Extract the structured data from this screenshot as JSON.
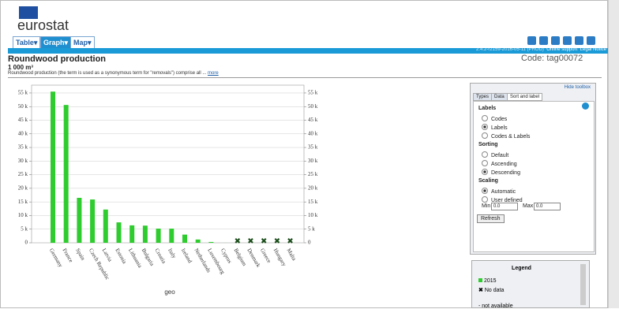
{
  "header": {
    "brand": "eurostat",
    "tabs": [
      "Table",
      "Graph",
      "Map"
    ],
    "version": "2.4.2-r2159-2016-05-11 (PROD)",
    "links": [
      "Online support",
      "Legal Notice"
    ],
    "code": "Code: tag00072"
  },
  "dataset": {
    "title": "Roundwood production",
    "unit": "1 000 m³",
    "description": "Roundwood production (the term is used as a synonymous term for \"removals\") comprise all ...",
    "more": "more"
  },
  "chart_data": {
    "type": "bar",
    "x_label": "geo",
    "categories": [
      "Germany",
      "France",
      "Spain",
      "Czech Republic",
      "Latvia",
      "Estonia",
      "Lithuania",
      "Bulgaria",
      "Croatia",
      "Italy",
      "Ireland",
      "Netherlands",
      "Luxembourg",
      "Cyprus",
      "Belgium",
      "Denmark",
      "Greece",
      "Hungary",
      "Malta"
    ],
    "series": [
      {
        "name": "2015",
        "color": "#2ecc2e",
        "values": [
          55500,
          50600,
          16500,
          15900,
          12200,
          7500,
          6400,
          6300,
          5200,
          5200,
          3000,
          1200,
          300,
          10,
          null,
          null,
          null,
          null,
          null
        ]
      }
    ],
    "ylim": [
      0,
      56000
    ],
    "yticks": [
      {
        "value": 0,
        "label": "0"
      },
      {
        "value": 5000,
        "label": "5 k"
      },
      {
        "value": 10000,
        "label": "10 k"
      },
      {
        "value": 15000,
        "label": "15 k"
      },
      {
        "value": 20000,
        "label": "20 k"
      },
      {
        "value": 25000,
        "label": "25 k"
      },
      {
        "value": 30000,
        "label": "30 k"
      },
      {
        "value": 35000,
        "label": "35 k"
      },
      {
        "value": 40000,
        "label": "40 k"
      },
      {
        "value": 45000,
        "label": "45 k"
      },
      {
        "value": 50000,
        "label": "50 k"
      },
      {
        "value": 55000,
        "label": "55 k"
      }
    ],
    "grid": true
  },
  "toolbox": {
    "hide": "Hide toolbox",
    "tabs": [
      "Types",
      "Data",
      "Sort and label"
    ],
    "labels": {
      "title": "Labels",
      "options": [
        "Codes",
        "Labels",
        "Codes & Labels"
      ]
    },
    "sorting": {
      "title": "Sorting",
      "options": [
        "Default",
        "Ascending",
        "Descending"
      ]
    },
    "scaling": {
      "title": "Scaling",
      "options": [
        "Automatic",
        "User defined"
      ],
      "min_label": "Min",
      "min": "0.0",
      "max_label": "Max",
      "max": "0.0"
    },
    "refresh": "Refresh"
  },
  "legend": {
    "title": "Legend",
    "no_data": "No data",
    "not_available": "- not available"
  }
}
